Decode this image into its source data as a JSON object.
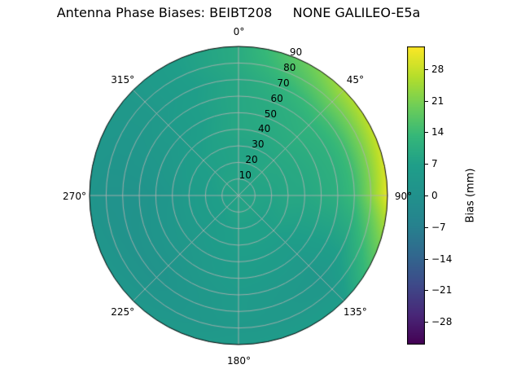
{
  "chart_data": {
    "type": "heatmap",
    "projection": "polar",
    "title": "Antenna Phase Biases: BEIBT208     NONE GALILEO-E5a",
    "colormap": "viridis",
    "colormap_stops": [
      [
        0.0,
        "#440154"
      ],
      [
        0.1,
        "#482878"
      ],
      [
        0.2,
        "#3e4a89"
      ],
      [
        0.3,
        "#31688e"
      ],
      [
        0.4,
        "#26828e"
      ],
      [
        0.5,
        "#21918c"
      ],
      [
        0.6,
        "#1f9e89"
      ],
      [
        0.7,
        "#35b779"
      ],
      [
        0.8,
        "#6ece58"
      ],
      [
        0.9,
        "#b5de2b"
      ],
      [
        1.0,
        "#fde725"
      ]
    ],
    "grid_color": "#b0b0b0",
    "value_range": [
      -33,
      33
    ],
    "angular_ticks_deg": [
      0,
      45,
      90,
      135,
      180,
      225,
      270,
      315
    ],
    "angular_tick_labels": [
      "0°",
      "45°",
      "90°",
      "135°",
      "180°",
      "225°",
      "270°",
      "315°"
    ],
    "radial_ticks": [
      10,
      20,
      30,
      40,
      50,
      60,
      70,
      80,
      90
    ],
    "azimuth_grid_deg": [
      0,
      45,
      90,
      135,
      180,
      225,
      270,
      315
    ],
    "zenith_grid_deg": [
      0,
      10,
      20,
      30,
      40,
      50,
      60,
      70,
      80,
      90
    ],
    "bias_values_mm": [
      [
        8,
        8,
        8,
        8,
        8,
        8,
        8,
        8
      ],
      [
        8,
        8,
        8,
        8,
        8,
        7,
        7,
        8
      ],
      [
        8,
        9,
        8,
        7,
        7,
        6,
        6,
        7
      ],
      [
        8,
        9,
        9,
        7,
        7,
        5,
        5,
        7
      ],
      [
        9,
        10,
        9,
        6,
        6,
        4,
        3,
        6
      ],
      [
        9,
        11,
        10,
        5,
        6,
        3,
        2,
        5
      ],
      [
        9,
        12,
        11,
        4,
        5,
        2,
        1,
        5
      ],
      [
        9,
        15,
        14,
        3,
        5,
        1,
        1,
        4
      ],
      [
        10,
        20,
        22,
        4,
        4,
        2,
        1,
        4
      ],
      [
        10,
        25,
        31,
        6,
        5,
        3,
        2,
        4
      ]
    ],
    "colorbar": {
      "label": "Bias (mm)",
      "tick_values": [
        28,
        21,
        14,
        7,
        0,
        -7,
        -14,
        -21,
        -28
      ],
      "tick_labels": [
        "28",
        "21",
        "14",
        "7",
        "0",
        "−7",
        "−14",
        "−21",
        "−28"
      ]
    }
  }
}
